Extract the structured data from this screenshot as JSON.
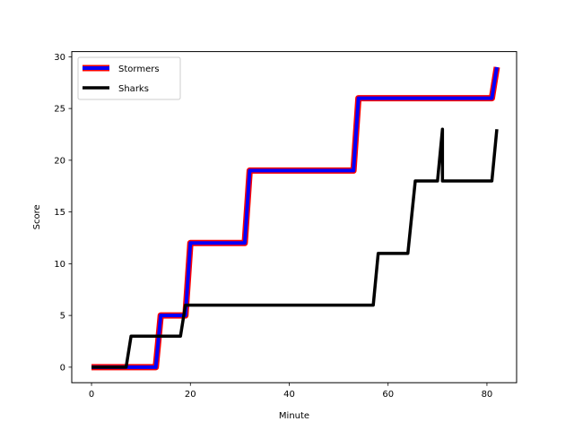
{
  "chart_data": {
    "type": "line",
    "title": "",
    "xlabel": "Minute",
    "ylabel": "Score",
    "xlim": [
      -4,
      86
    ],
    "ylim": [
      -1.5,
      30.5
    ],
    "xticks": [
      0,
      20,
      40,
      60,
      80
    ],
    "yticks": [
      0,
      5,
      10,
      15,
      20,
      25,
      30
    ],
    "grid": false,
    "legend_position": "top-left",
    "series": [
      {
        "name": "Stormers",
        "color": "#0000ff",
        "edge_color": "#ff0000",
        "x": [
          0,
          7.5,
          13,
          14,
          18.5,
          19,
          20,
          31,
          32,
          53,
          54,
          81,
          82
        ],
        "y": [
          0,
          0,
          0,
          5,
          5,
          5,
          12,
          12,
          19,
          19,
          26,
          26,
          29
        ]
      },
      {
        "name": "Sharks",
        "color": "#000000",
        "x": [
          0,
          7,
          8,
          18,
          19,
          57,
          58,
          64,
          65.5,
          70,
          71,
          71,
          81,
          82
        ],
        "y": [
          0,
          0,
          3,
          3,
          6,
          6,
          11,
          11,
          18,
          18,
          23,
          18,
          18,
          23
        ]
      }
    ]
  }
}
